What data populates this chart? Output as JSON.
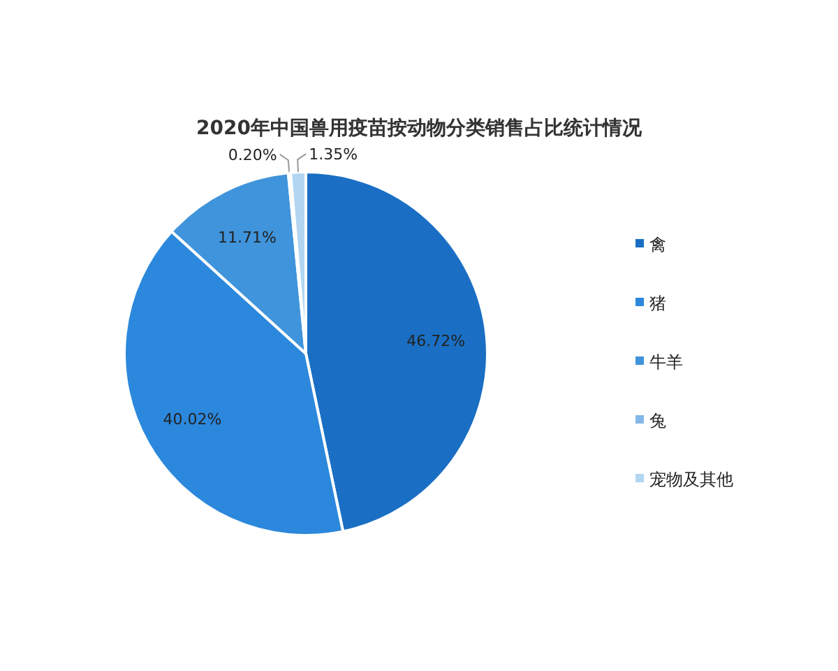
{
  "chart_data": {
    "type": "pie",
    "title": "2020年中国兽用疫苗按动物分类销售占比统计情况",
    "categories": [
      "禽",
      "猪",
      "牛羊",
      "兔",
      "宠物及其他"
    ],
    "values": [
      46.72,
      40.02,
      11.71,
      0.2,
      1.35
    ],
    "colors": [
      "#1a6fc4",
      "#2b88dc",
      "#3f94db",
      "#85b8ea",
      "#b3d6f0"
    ],
    "value_labels": [
      "46.72%",
      "40.02%",
      "11.71%",
      "0.20%",
      "1.35%"
    ],
    "legend": "right"
  }
}
